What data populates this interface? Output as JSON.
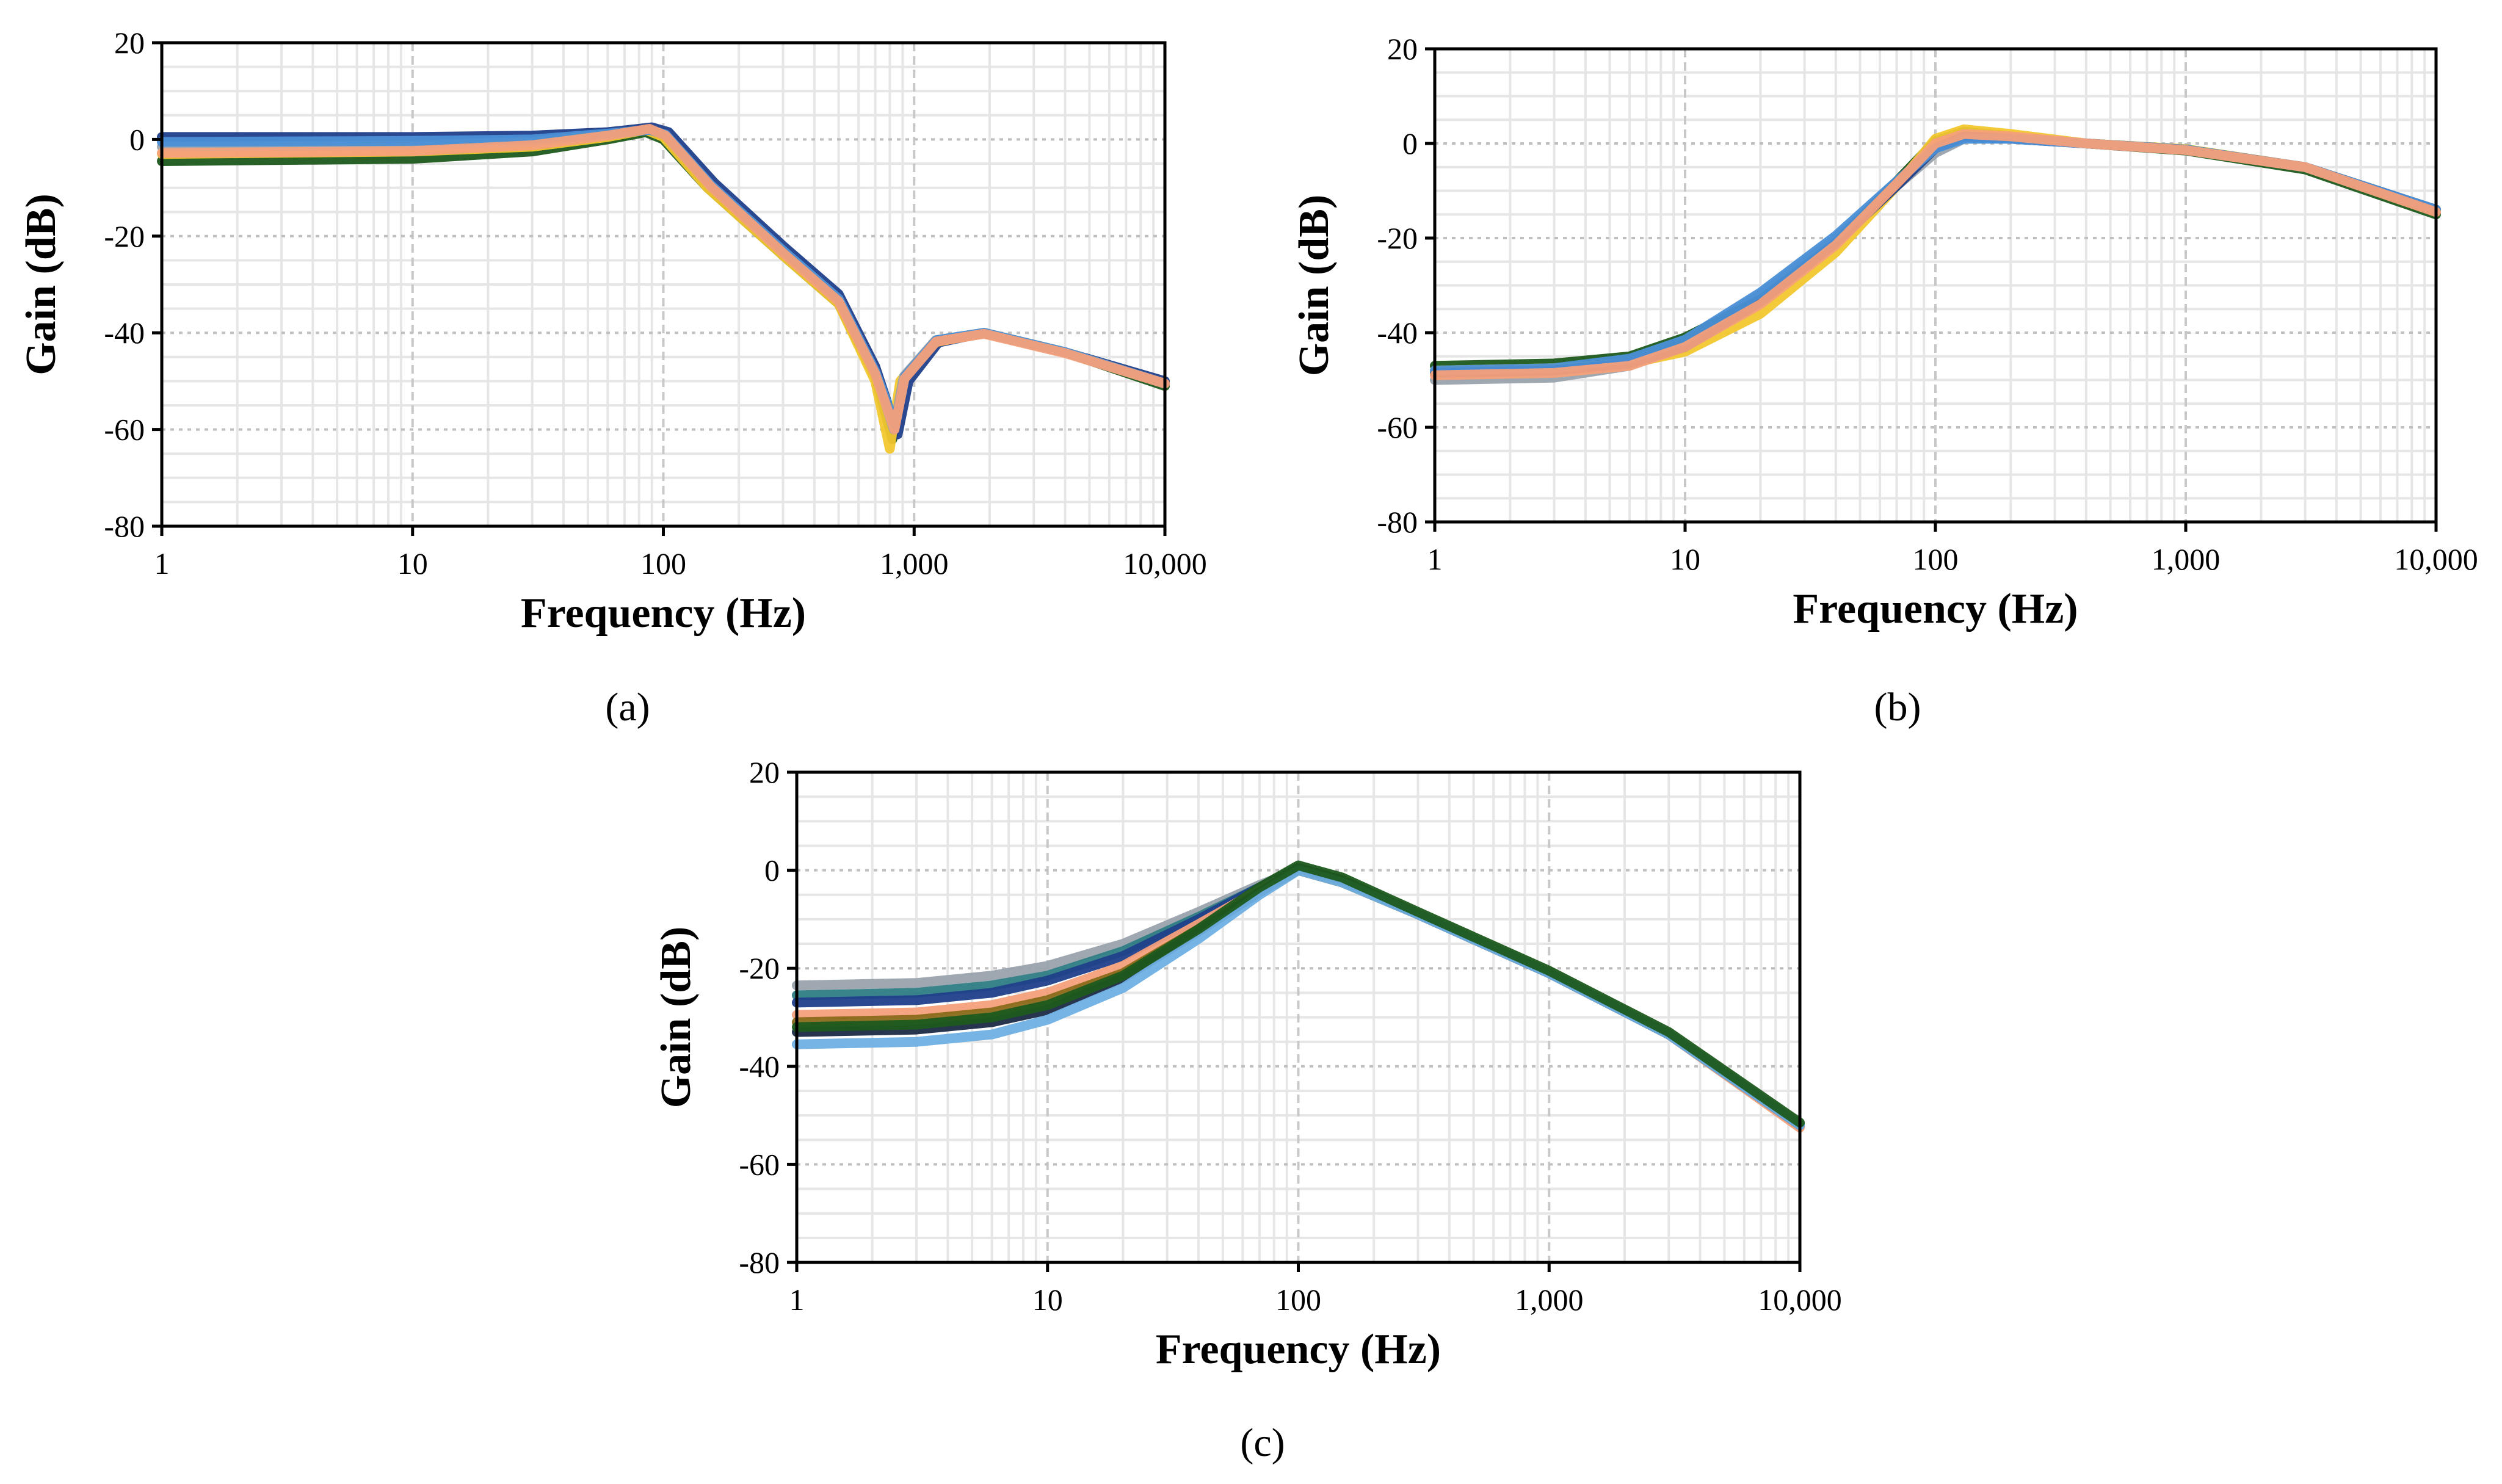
{
  "chart_data": [
    {
      "id": "a",
      "type": "line",
      "caption": "(a)",
      "xlabel": "Frequency (Hz)",
      "ylabel": "Gain (dB)",
      "xscale": "log",
      "xlim": [
        1,
        10000
      ],
      "ylim": [
        -80,
        20
      ],
      "xticks": [
        1,
        10,
        100,
        1000,
        10000
      ],
      "xtick_labels": [
        "1",
        "10",
        "100",
        "1,000",
        "10,000"
      ],
      "yticks": [
        20,
        0,
        -20,
        -40,
        -60,
        -80
      ],
      "ytick_labels": [
        "20",
        "0",
        "-20",
        "-40",
        "-60",
        "-80"
      ],
      "grid": true,
      "series": [
        {
          "name": "dark green",
          "color": "#1e5a1e",
          "x": [
            1,
            10,
            30,
            60,
            85,
            100,
            150,
            300,
            500,
            700,
            820,
            900,
            1200,
            1900,
            4000,
            10000
          ],
          "y": [
            -4.5,
            -4,
            -2.5,
            0,
            1.5,
            0,
            -10,
            -24,
            -34,
            -49,
            -62,
            -50,
            -42,
            -40,
            -44,
            -51
          ]
        },
        {
          "name": "dark blue",
          "color": "#1f3f8a",
          "x": [
            1,
            10,
            30,
            60,
            90,
            105,
            160,
            300,
            500,
            700,
            860,
            950,
            1250,
            1900,
            4000,
            10000
          ],
          "y": [
            0.5,
            0.5,
            0.8,
            1.5,
            2.5,
            1.5,
            -9,
            -22,
            -32,
            -47,
            -61,
            -50,
            -42,
            -40,
            -44,
            -50
          ]
        },
        {
          "name": "yellow",
          "color": "#f2c72e",
          "x": [
            1,
            10,
            30,
            60,
            85,
            100,
            150,
            300,
            500,
            700,
            800,
            880,
            1200,
            1900,
            4000,
            10000
          ],
          "y": [
            -3,
            -2.5,
            -1.5,
            0.5,
            2,
            0.5,
            -10,
            -24,
            -34,
            -50,
            -64,
            -50,
            -42,
            -40,
            -44,
            -50.5
          ]
        },
        {
          "name": "grey",
          "color": "#9aa3ad",
          "x": [
            1,
            10,
            30,
            60,
            88,
            102,
            155,
            300,
            500,
            700,
            830,
            910,
            1220,
            1900,
            4000,
            10000
          ],
          "y": [
            -1.5,
            -1.2,
            -0.5,
            1,
            2,
            1,
            -9.5,
            -23,
            -33,
            -48,
            -60,
            -49,
            -41.5,
            -40,
            -44,
            -50.5
          ]
        },
        {
          "name": "light blue",
          "color": "#4a8fd6",
          "x": [
            1,
            10,
            30,
            60,
            88,
            102,
            155,
            300,
            500,
            700,
            840,
            920,
            1230,
            1900,
            4000,
            10000
          ],
          "y": [
            -0.5,
            -0.3,
            0,
            1.2,
            2,
            1,
            -9.5,
            -23,
            -33,
            -48,
            -59,
            -49,
            -41.5,
            -40,
            -44,
            -50.5
          ]
        },
        {
          "name": "orange",
          "color": "#f4a07a",
          "x": [
            1,
            10,
            30,
            60,
            88,
            102,
            155,
            300,
            500,
            700,
            835,
            915,
            1225,
            1900,
            4000,
            10000
          ],
          "y": [
            -2.8,
            -2.4,
            -1.2,
            0.8,
            2.2,
            0.8,
            -9.8,
            -23.5,
            -33.5,
            -48.5,
            -60,
            -49.5,
            -41.8,
            -40.2,
            -44.2,
            -50.5
          ]
        }
      ]
    },
    {
      "id": "b",
      "type": "line",
      "caption": "(b)",
      "xlabel": "Frequency (Hz)",
      "ylabel": "Gain (dB)",
      "xscale": "log",
      "xlim": [
        1,
        10000
      ],
      "ylim": [
        -80,
        20
      ],
      "xticks": [
        1,
        10,
        100,
        1000,
        10000
      ],
      "xtick_labels": [
        "1",
        "10",
        "100",
        "1,000",
        "10,000"
      ],
      "yticks": [
        20,
        0,
        -20,
        -40,
        -60,
        -80
      ],
      "ytick_labels": [
        "20",
        "0",
        "-20",
        "-40",
        "-60",
        "-80"
      ],
      "grid": true,
      "series": [
        {
          "name": "grey",
          "color": "#9aa3ad",
          "x": [
            1,
            3,
            6,
            10,
            20,
            40,
            70,
            100,
            130,
            200,
            400,
            1000,
            3000,
            10000
          ],
          "y": [
            -50,
            -49.5,
            -47,
            -42,
            -32,
            -20,
            -9,
            -2,
            1,
            1,
            0,
            -1.5,
            -5,
            -14
          ]
        },
        {
          "name": "dark green",
          "color": "#1e5a1e",
          "x": [
            1,
            3,
            6,
            10,
            20,
            40,
            70,
            100,
            130,
            200,
            400,
            1000,
            3000,
            10000
          ],
          "y": [
            -47,
            -46.5,
            -45,
            -41,
            -33,
            -21,
            -8,
            0.5,
            2.5,
            1.5,
            0,
            -1.5,
            -5.5,
            -15
          ]
        },
        {
          "name": "yellow",
          "color": "#f2c72e",
          "x": [
            1,
            3,
            6,
            10,
            20,
            40,
            70,
            100,
            130,
            200,
            400,
            1000,
            3000,
            10000
          ],
          "y": [
            -48,
            -47.5,
            -46.5,
            -44,
            -36,
            -23,
            -9,
            1,
            3,
            2,
            0,
            -1.2,
            -5,
            -14
          ]
        },
        {
          "name": "dark blue",
          "color": "#1f3f8a",
          "x": [
            1,
            3,
            6,
            10,
            20,
            40,
            70,
            100,
            130,
            200,
            400,
            1000,
            3000,
            10000
          ],
          "y": [
            -48.5,
            -48,
            -46.5,
            -43,
            -33.5,
            -21,
            -9,
            -1,
            1.5,
            1,
            0,
            -1.3,
            -5,
            -14
          ]
        },
        {
          "name": "light blue",
          "color": "#4a8fd6",
          "x": [
            1,
            3,
            6,
            10,
            20,
            40,
            70,
            100,
            130,
            200,
            400,
            1000,
            3000,
            10000
          ],
          "y": [
            -48,
            -47.5,
            -45.5,
            -41.5,
            -31.5,
            -19.5,
            -8,
            -1,
            1,
            1,
            0,
            -1.3,
            -5,
            -14
          ]
        },
        {
          "name": "orange",
          "color": "#f4a07a",
          "x": [
            1,
            3,
            6,
            10,
            20,
            40,
            70,
            100,
            130,
            200,
            400,
            1000,
            3000,
            10000
          ],
          "y": [
            -49,
            -48.5,
            -47,
            -43,
            -34,
            -21.5,
            -8.5,
            0,
            2,
            1.5,
            0,
            -1.4,
            -5,
            -14.5
          ]
        }
      ]
    },
    {
      "id": "c",
      "type": "line",
      "caption": "(c)",
      "xlabel": "Frequency (Hz)",
      "ylabel": "Gain (dB)",
      "xscale": "log",
      "xlim": [
        1,
        10000
      ],
      "ylim": [
        -80,
        20
      ],
      "xticks": [
        1,
        10,
        100,
        1000,
        10000
      ],
      "xtick_labels": [
        "1",
        "10",
        "100",
        "1,000",
        "10,000"
      ],
      "yticks": [
        20,
        0,
        -20,
        -40,
        -60,
        -80
      ],
      "ytick_labels": [
        "20",
        "0",
        "-20",
        "-40",
        "-60",
        "-80"
      ],
      "grid": true,
      "series": [
        {
          "name": "grey",
          "color": "#9aa3ad",
          "x": [
            1,
            3,
            6,
            10,
            20,
            40,
            70,
            100,
            150,
            300,
            1000,
            3000,
            10000
          ],
          "y": [
            -23.5,
            -23,
            -21.5,
            -19.5,
            -15,
            -8.5,
            -3,
            0,
            -2.5,
            -9,
            -21,
            -33.5,
            -52
          ]
        },
        {
          "name": "teal",
          "color": "#2e7d84",
          "x": [
            1,
            3,
            6,
            10,
            20,
            40,
            70,
            100,
            150,
            300,
            1000,
            3000,
            10000
          ],
          "y": [
            -25.5,
            -25,
            -23.5,
            -21.5,
            -16.5,
            -9.5,
            -3.5,
            0,
            -2.5,
            -9,
            -21,
            -33.5,
            -52
          ]
        },
        {
          "name": "dark blue",
          "color": "#1f3f8a",
          "x": [
            1,
            3,
            6,
            10,
            20,
            40,
            70,
            100,
            150,
            300,
            1000,
            3000,
            10000
          ],
          "y": [
            -27,
            -26.5,
            -25,
            -22.5,
            -17.5,
            -10,
            -3.5,
            0.5,
            -2,
            -9,
            -21,
            -33.5,
            -52
          ]
        },
        {
          "name": "orange",
          "color": "#f4a07a",
          "x": [
            1,
            3,
            6,
            10,
            20,
            40,
            70,
            100,
            150,
            300,
            1000,
            3000,
            10000
          ],
          "y": [
            -29.5,
            -29,
            -27.5,
            -25,
            -19.5,
            -11,
            -4,
            0,
            -2.5,
            -9,
            -21,
            -33.5,
            -52.5
          ]
        },
        {
          "name": "olive",
          "color": "#8a6a1a",
          "x": [
            1,
            3,
            6,
            10,
            20,
            40,
            70,
            100,
            150,
            300,
            1000,
            3000,
            10000
          ],
          "y": [
            -31,
            -30.5,
            -29,
            -26.5,
            -21,
            -12,
            -4.5,
            0,
            -2.5,
            -9,
            -21,
            -33.5,
            -52
          ]
        },
        {
          "name": "dark navy",
          "color": "#1b2a44",
          "x": [
            1,
            3,
            6,
            10,
            20,
            40,
            70,
            100,
            150,
            300,
            1000,
            3000,
            10000
          ],
          "y": [
            -33,
            -32.5,
            -31,
            -28.5,
            -22,
            -12.5,
            -4.5,
            0.5,
            -2,
            -9,
            -21,
            -33.5,
            -52
          ]
        },
        {
          "name": "light blue",
          "color": "#6fb0e4",
          "x": [
            1,
            3,
            6,
            10,
            20,
            40,
            70,
            100,
            150,
            300,
            1000,
            3000,
            10000
          ],
          "y": [
            -35.5,
            -35,
            -33.5,
            -30.5,
            -24,
            -14,
            -5,
            0,
            -2.5,
            -9,
            -21,
            -33.5,
            -52
          ]
        },
        {
          "name": "dark green",
          "color": "#1e5a1e",
          "x": [
            1,
            3,
            6,
            10,
            20,
            40,
            70,
            100,
            150,
            300,
            1000,
            3000,
            10000
          ],
          "y": [
            -32,
            -31.5,
            -30,
            -27.5,
            -21.5,
            -12,
            -3.5,
            1,
            -1.5,
            -8.5,
            -20.5,
            -33,
            -51.5
          ]
        }
      ]
    }
  ]
}
